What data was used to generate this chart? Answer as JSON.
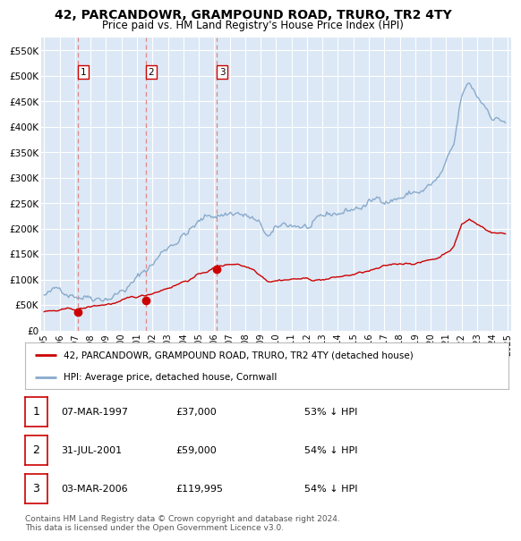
{
  "title": "42, PARCANDOWR, GRAMPOUND ROAD, TRURO, TR2 4TY",
  "subtitle": "Price paid vs. HM Land Registry's House Price Index (HPI)",
  "xlim": [
    1994.8,
    2025.2
  ],
  "ylim": [
    0,
    575000
  ],
  "yticks": [
    0,
    50000,
    100000,
    150000,
    200000,
    250000,
    300000,
    350000,
    400000,
    450000,
    500000,
    550000
  ],
  "ytick_labels": [
    "£0",
    "£50K",
    "£100K",
    "£150K",
    "£200K",
    "£250K",
    "£300K",
    "£350K",
    "£400K",
    "£450K",
    "£500K",
    "£550K"
  ],
  "xticks": [
    1995,
    1996,
    1997,
    1998,
    1999,
    2000,
    2001,
    2002,
    2003,
    2004,
    2005,
    2006,
    2007,
    2008,
    2009,
    2010,
    2011,
    2012,
    2013,
    2014,
    2015,
    2016,
    2017,
    2018,
    2019,
    2020,
    2021,
    2022,
    2023,
    2024,
    2025
  ],
  "property_color": "#cc0000",
  "hpi_color": "#88aacc",
  "background_color": "#dce8f5",
  "grid_color": "#ffffff",
  "sale_points": [
    {
      "year": 1997.18,
      "price": 37000,
      "label": "1"
    },
    {
      "year": 2001.58,
      "price": 59000,
      "label": "2"
    },
    {
      "year": 2006.17,
      "price": 119995,
      "label": "3"
    }
  ],
  "vline_color": "#dd8888",
  "legend_property": "42, PARCANDOWR, GRAMPOUND ROAD, TRURO, TR2 4TY (detached house)",
  "legend_hpi": "HPI: Average price, detached house, Cornwall",
  "table_rows": [
    [
      "1",
      "07-MAR-1997",
      "£37,000",
      "53% ↓ HPI"
    ],
    [
      "2",
      "31-JUL-2001",
      "£59,000",
      "54% ↓ HPI"
    ],
    [
      "3",
      "03-MAR-2006",
      "£119,995",
      "54% ↓ HPI"
    ]
  ],
  "footnote": "Contains HM Land Registry data © Crown copyright and database right 2024.\nThis data is licensed under the Open Government Licence v3.0."
}
